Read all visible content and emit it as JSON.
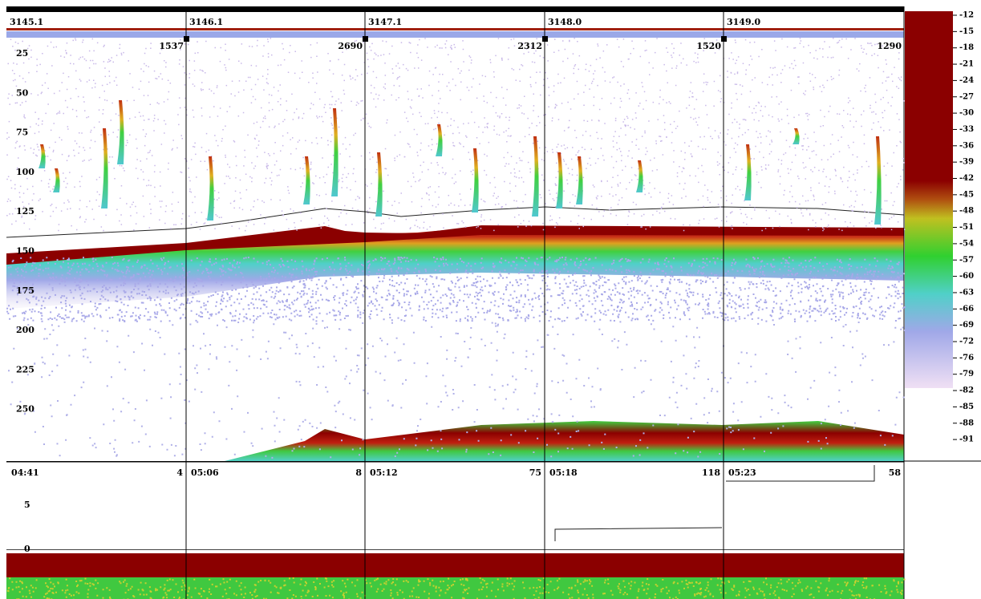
{
  "header": {
    "segments": [
      {
        "label": "3145.1",
        "count": "1537"
      },
      {
        "label": "3146.1",
        "count": "2690"
      },
      {
        "label": "3147.1",
        "count": "2312"
      },
      {
        "label": "3148.0",
        "count": "1520"
      },
      {
        "label": "3149.0",
        "count": "1290"
      }
    ]
  },
  "depth_axis": {
    "labels": [
      25,
      50,
      75,
      100,
      125,
      150,
      175,
      200,
      225,
      250
    ]
  },
  "color_scale": {
    "labels": [
      -12,
      -15,
      -18,
      -21,
      -24,
      -27,
      -30,
      -33,
      -36,
      -39,
      -42,
      -45,
      -48,
      -51,
      -54,
      -57,
      -60,
      -63,
      -66,
      -69,
      -72,
      -76,
      -79,
      -82,
      -85,
      -88,
      -91
    ]
  },
  "lower_panel": {
    "segments": [
      {
        "time": "04:41",
        "count": "4"
      },
      {
        "time": "05:06",
        "count": "8"
      },
      {
        "time": "05:12",
        "count": "75"
      },
      {
        "time": "05:18",
        "count": "118"
      },
      {
        "time": "05:23",
        "count": "58"
      }
    ],
    "depth_labels": [
      5,
      0
    ]
  }
}
